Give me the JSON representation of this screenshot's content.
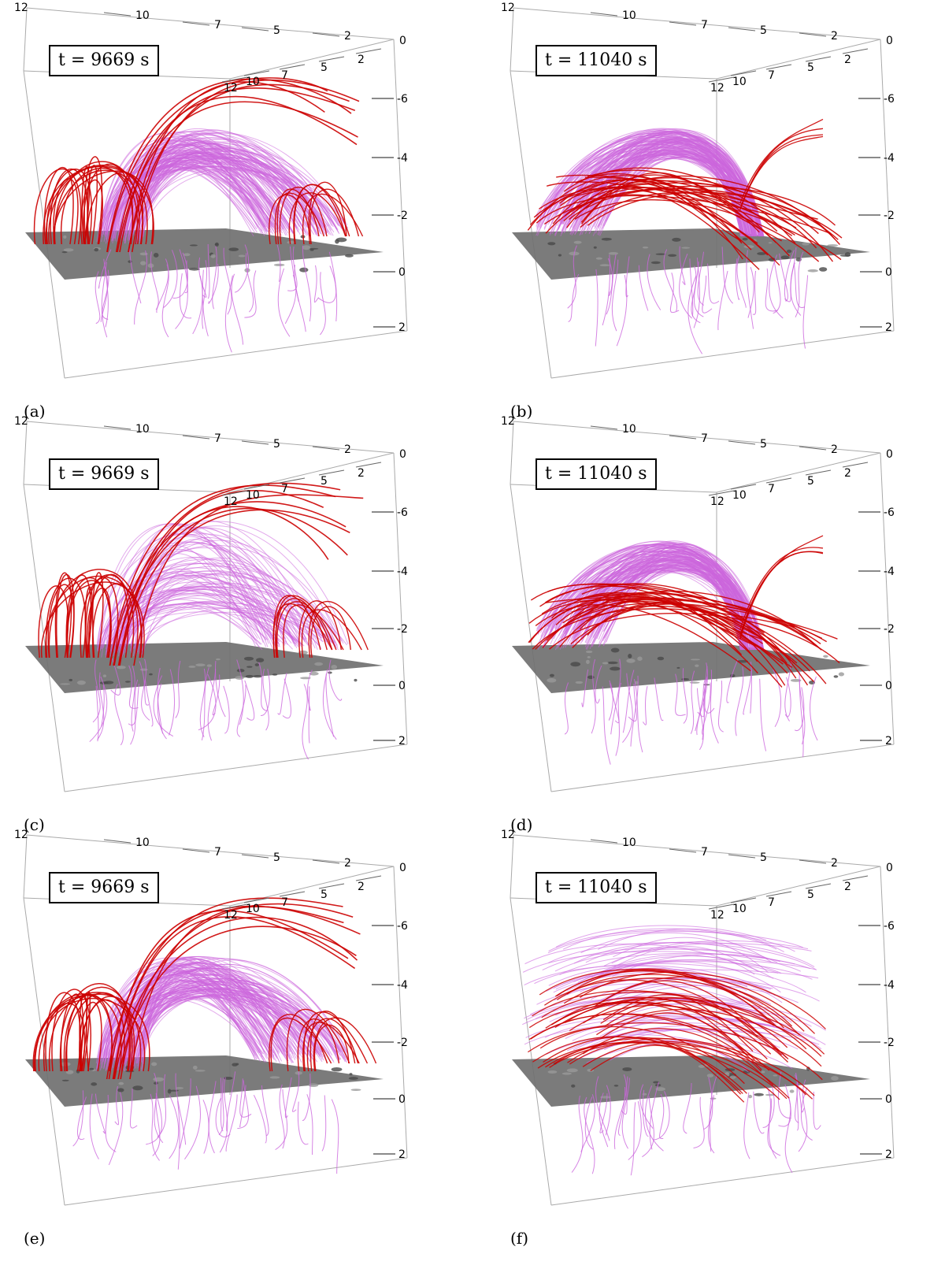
{
  "figure": {
    "panels": [
      {
        "id": "a",
        "label": "(a)",
        "time": "t = 9669 s",
        "variant": "dense"
      },
      {
        "id": "b",
        "label": "(b)",
        "time": "t = 11040 s",
        "variant": "arcade"
      },
      {
        "id": "c",
        "label": "(c)",
        "time": "t = 9669 s",
        "variant": "loose"
      },
      {
        "id": "d",
        "label": "(d)",
        "time": "t = 11040 s",
        "variant": "arcade"
      },
      {
        "id": "e",
        "label": "(e)",
        "time": "t = 9669 s",
        "variant": "dense"
      },
      {
        "id": "f",
        "label": "(f)",
        "time": "t = 11040 s",
        "variant": "layered"
      }
    ],
    "top_axis_ticks": [
      "12",
      "10",
      "7",
      "5",
      "2",
      "0"
    ],
    "depth_axis_ticks": [
      "2",
      "5",
      "7",
      "10",
      "12"
    ],
    "height_axis_ticks": [
      "-6",
      "-4",
      "-2",
      "0",
      "2"
    ],
    "colors": {
      "pink_lines": "#cc66dd",
      "red_lines": "#cc0000",
      "plane": "#707070",
      "box_lines": "#aaaaaa"
    }
  }
}
